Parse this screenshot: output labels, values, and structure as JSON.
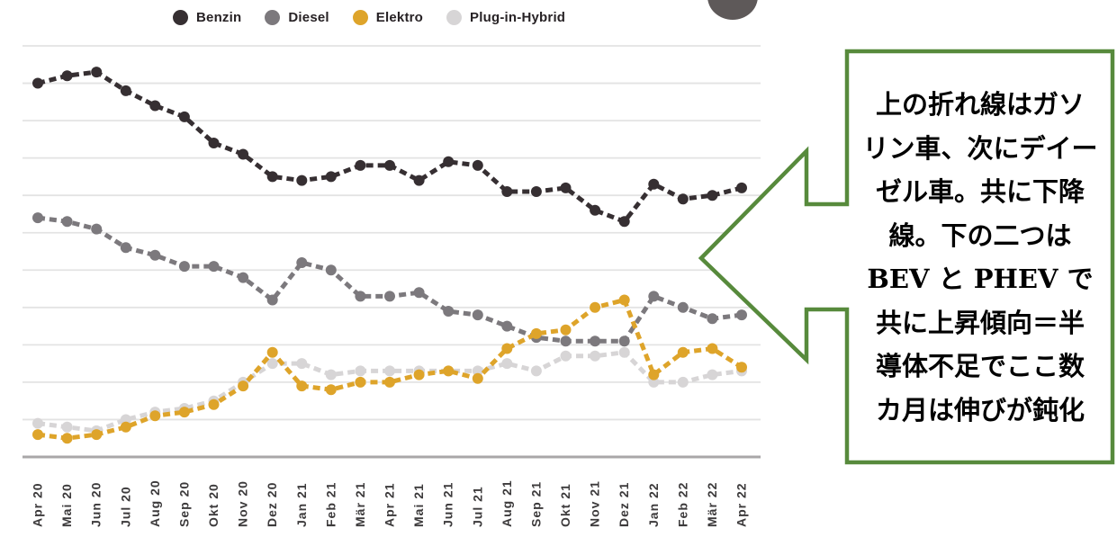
{
  "chart_data": {
    "type": "line",
    "title": "",
    "xlabel": "",
    "ylabel": "",
    "categories": [
      "Apr 20",
      "Mai 20",
      "Jun 20",
      "Jul 20",
      "Aug 20",
      "Sep 20",
      "Okt 20",
      "Nov 20",
      "Dez 20",
      "Jan 21",
      "Feb 21",
      "Mär 21",
      "Apr 21",
      "Mai 21",
      "Jun 21",
      "Jul 21",
      "Aug 21",
      "Sep 21",
      "Okt 21",
      "Nov 21",
      "Dez 21",
      "Jan 22",
      "Feb 22",
      "Mär 22",
      "Apr 22"
    ],
    "series": [
      {
        "name": "Plug-in-Hybrid",
        "color": "#d7d5d6",
        "values": [
          4.5,
          4,
          3.5,
          5,
          6,
          6.5,
          7.5,
          10,
          12.5,
          12.5,
          11,
          11.5,
          11.5,
          11.5,
          11.5,
          11.5,
          12.5,
          11.5,
          13.5,
          13.5,
          14,
          10,
          10,
          11,
          11.5
        ]
      },
      {
        "name": "Diesel",
        "color": "#7c797d",
        "values": [
          32,
          31.5,
          30.5,
          28,
          27,
          25.5,
          25.5,
          24,
          21,
          26,
          25,
          21.5,
          21.5,
          22,
          19.5,
          19,
          17.5,
          16,
          15.5,
          15.5,
          15.5,
          21.5,
          20,
          18.5,
          19
        ]
      },
      {
        "name": "Elektro",
        "color": "#dea42a",
        "values": [
          3,
          2.5,
          3,
          4,
          5.5,
          6,
          7,
          9.5,
          14,
          9.5,
          9,
          10,
          10,
          11,
          11.5,
          10.5,
          14.5,
          16.5,
          17,
          20,
          21,
          11,
          14,
          14.5,
          12
        ]
      },
      {
        "name": "Benzin",
        "color": "#362f32",
        "values": [
          50,
          51,
          51.5,
          49,
          47,
          45.5,
          42,
          40.5,
          37.5,
          37,
          37.5,
          39,
          39,
          37,
          39.5,
          39,
          35.5,
          35.5,
          36,
          33,
          31.5,
          36.5,
          34.5,
          35,
          36
        ]
      }
    ],
    "legend_order": [
      "Benzin",
      "Diesel",
      "Elektro",
      "Plug-in-Hybrid"
    ],
    "legend_position": "top",
    "ylim": [
      0,
      55
    ],
    "gridline_step": 5,
    "grid": true,
    "y_axis_labels_visible": false,
    "line_style": "dashed"
  },
  "annotation": {
    "lines": [
      "上の折れ線はガソ",
      "リン車、次にデイー",
      "ゼル車。共に下降",
      "線。下の二つは",
      "BEV と PHEV で",
      "共に上昇傾向＝半",
      "導体不足でここ数",
      "カ月は伸びが鈍化"
    ],
    "border_color": "#578a3c"
  },
  "colors": {
    "grid_line": "#e3e3e3",
    "axis_line": "#a9a7a8",
    "tick_label": "#3c3a3b",
    "legend_text": "#272225",
    "top_circle": "#5e5959",
    "background": "#ffffff"
  }
}
